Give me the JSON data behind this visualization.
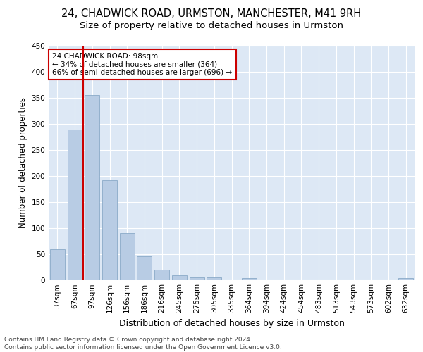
{
  "title1": "24, CHADWICK ROAD, URMSTON, MANCHESTER, M41 9RH",
  "title2": "Size of property relative to detached houses in Urmston",
  "xlabel": "Distribution of detached houses by size in Urmston",
  "ylabel": "Number of detached properties",
  "categories": [
    "37sqm",
    "67sqm",
    "97sqm",
    "126sqm",
    "156sqm",
    "186sqm",
    "216sqm",
    "245sqm",
    "275sqm",
    "305sqm",
    "335sqm",
    "364sqm",
    "394sqm",
    "424sqm",
    "454sqm",
    "483sqm",
    "513sqm",
    "543sqm",
    "573sqm",
    "602sqm",
    "632sqm"
  ],
  "values": [
    59,
    289,
    355,
    192,
    90,
    46,
    19,
    9,
    5,
    5,
    0,
    4,
    0,
    0,
    0,
    0,
    0,
    0,
    0,
    0,
    4
  ],
  "bar_color": "#b8cce4",
  "bar_edge_color": "#8aaac8",
  "vline_color": "#cc0000",
  "vline_x_index": 2,
  "annotation_text": "24 CHADWICK ROAD: 98sqm\n← 34% of detached houses are smaller (364)\n66% of semi-detached houses are larger (696) →",
  "annotation_box_facecolor": "#ffffff",
  "annotation_box_edgecolor": "#cc0000",
  "ylim": [
    0,
    450
  ],
  "yticks": [
    0,
    50,
    100,
    150,
    200,
    250,
    300,
    350,
    400,
    450
  ],
  "fig_facecolor": "#ffffff",
  "axes_facecolor": "#dde8f5",
  "grid_color": "#ffffff",
  "title1_fontsize": 10.5,
  "title2_fontsize": 9.5,
  "xlabel_fontsize": 9,
  "ylabel_fontsize": 8.5,
  "tick_fontsize": 7.5,
  "annotation_fontsize": 7.5,
  "footer_fontsize": 6.5,
  "footer": "Contains HM Land Registry data © Crown copyright and database right 2024.\nContains public sector information licensed under the Open Government Licence v3.0."
}
